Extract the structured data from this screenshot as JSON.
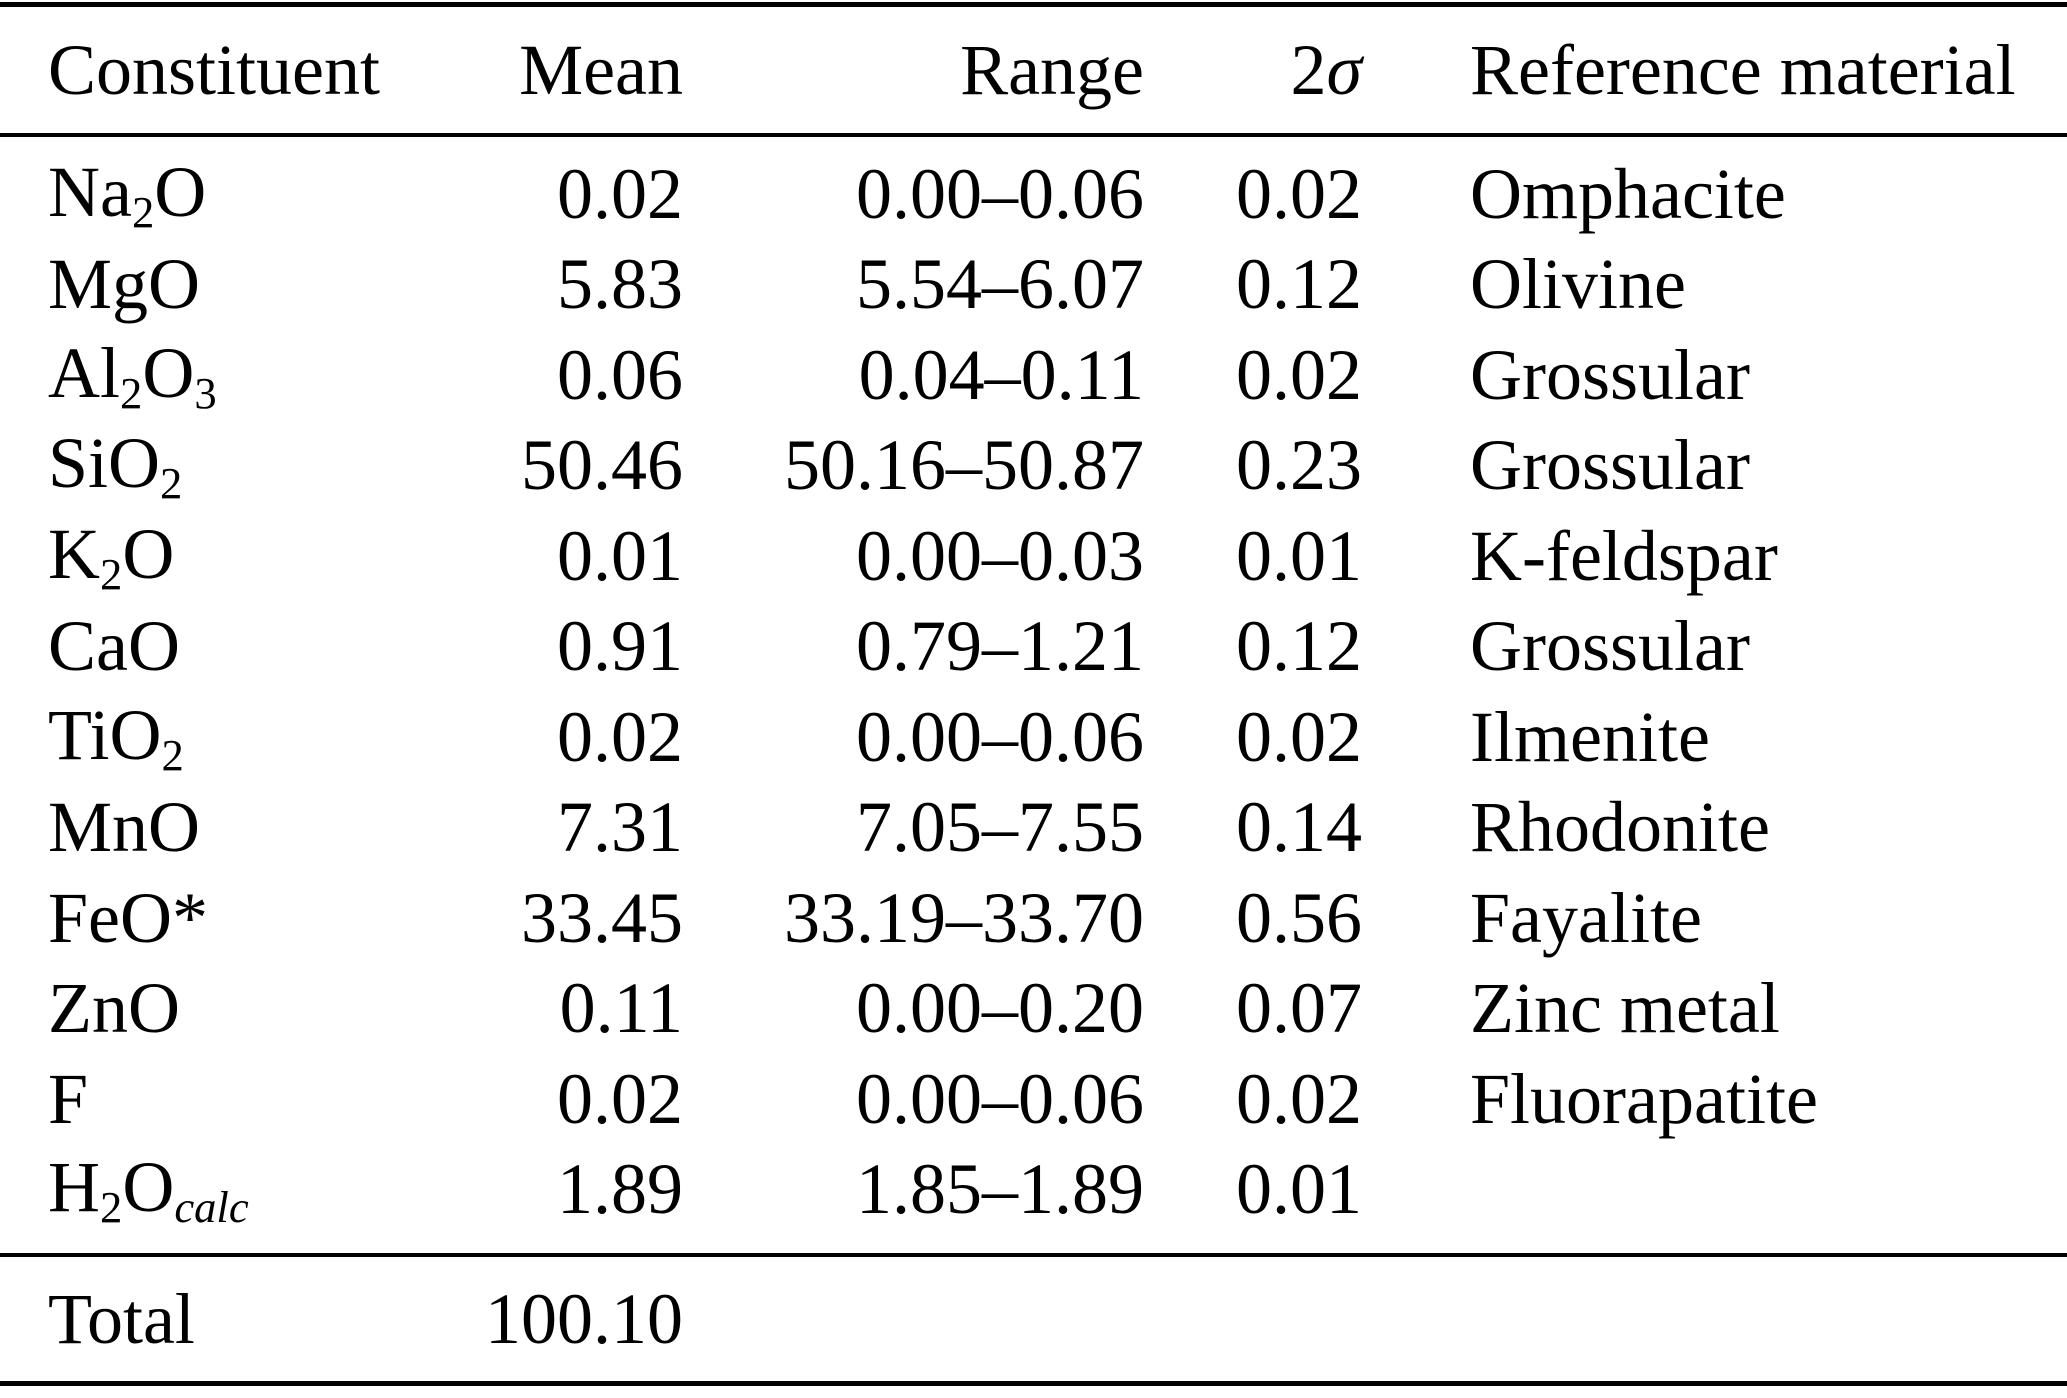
{
  "table": {
    "header": {
      "constituent": "Constituent",
      "mean": "Mean",
      "range": "Range",
      "sigma_coefficient": "2",
      "sigma_symbol": "σ",
      "reference": "Reference material"
    },
    "rows": [
      {
        "formula": [
          {
            "t": "Na"
          },
          {
            "sub": "2"
          },
          {
            "t": "O"
          }
        ],
        "mean": "0.02",
        "range": "0.00–0.06",
        "two_sigma": "0.02",
        "reference": "Omphacite"
      },
      {
        "formula": [
          {
            "t": "MgO"
          }
        ],
        "mean": "5.83",
        "range": "5.54–6.07",
        "two_sigma": "0.12",
        "reference": "Olivine"
      },
      {
        "formula": [
          {
            "t": "Al"
          },
          {
            "sub": "2"
          },
          {
            "t": "O"
          },
          {
            "sub": "3"
          }
        ],
        "mean": "0.06",
        "range": "0.04–0.11",
        "two_sigma": "0.02",
        "reference": "Grossular"
      },
      {
        "formula": [
          {
            "t": "SiO"
          },
          {
            "sub": "2"
          }
        ],
        "mean": "50.46",
        "range": "50.16–50.87",
        "two_sigma": "0.23",
        "reference": "Grossular"
      },
      {
        "formula": [
          {
            "t": "K"
          },
          {
            "sub": "2"
          },
          {
            "t": "O"
          }
        ],
        "mean": "0.01",
        "range": "0.00–0.03",
        "two_sigma": "0.01",
        "reference": "K-feldspar"
      },
      {
        "formula": [
          {
            "t": "CaO"
          }
        ],
        "mean": "0.91",
        "range": "0.79–1.21",
        "two_sigma": "0.12",
        "reference": "Grossular"
      },
      {
        "formula": [
          {
            "t": "TiO"
          },
          {
            "sub": "2"
          }
        ],
        "mean": "0.02",
        "range": "0.00–0.06",
        "two_sigma": "0.02",
        "reference": "Ilmenite"
      },
      {
        "formula": [
          {
            "t": "MnO"
          }
        ],
        "mean": "7.31",
        "range": "7.05–7.55",
        "two_sigma": "0.14",
        "reference": "Rhodonite"
      },
      {
        "formula": [
          {
            "t": "FeO*"
          }
        ],
        "mean": "33.45",
        "range": "33.19–33.70",
        "two_sigma": "0.56",
        "reference": "Fayalite"
      },
      {
        "formula": [
          {
            "t": "ZnO"
          }
        ],
        "mean": "0.11",
        "range": "0.00–0.20",
        "two_sigma": "0.07",
        "reference": "Zinc metal"
      },
      {
        "formula": [
          {
            "t": "F"
          }
        ],
        "mean": "0.02",
        "range": "0.00–0.06",
        "two_sigma": "0.02",
        "reference": "Fluorapatite"
      },
      {
        "formula": [
          {
            "t": "H"
          },
          {
            "sub": "2"
          },
          {
            "t": "O"
          },
          {
            "subi": "calc"
          }
        ],
        "mean": "1.89",
        "range": "1.85–1.89",
        "two_sigma": "0.01",
        "reference": ""
      }
    ],
    "total": {
      "label": "Total",
      "value": "100.10"
    }
  },
  "colors": {
    "text": "#000000",
    "background": "#ffffff",
    "rule": "#000000"
  }
}
